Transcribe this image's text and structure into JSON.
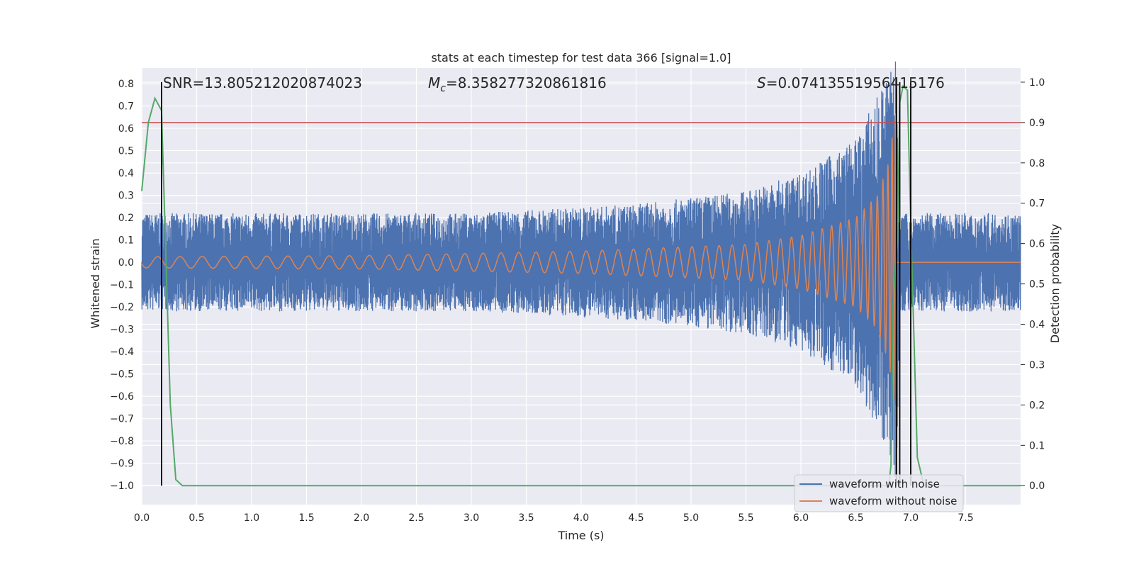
{
  "chart_data": {
    "type": "line",
    "title": "stats at each timestep for test data 366 [signal=1.0]",
    "xlabel": "Time (s)",
    "ylabel": "Whitened strain",
    "y2label": "Detection probability",
    "xlim": [
      0.0,
      8.0
    ],
    "ylim": [
      -1.085,
      0.87
    ],
    "y2lim": [
      -0.047,
      1.035
    ],
    "x_ticks": [
      "0.0",
      "0.5",
      "1.0",
      "1.5",
      "2.0",
      "2.5",
      "3.0",
      "3.5",
      "4.0",
      "4.5",
      "5.0",
      "5.5",
      "6.0",
      "6.5",
      "7.0",
      "7.5"
    ],
    "y_ticks": [
      "0.8",
      "0.7",
      "0.6",
      "0.5",
      "0.4",
      "0.3",
      "0.2",
      "0.1",
      "0.0",
      "−0.1",
      "−0.2",
      "−0.3",
      "−0.4",
      "−0.5",
      "−0.6",
      "−0.7",
      "−0.8",
      "−0.9",
      "−1.0"
    ],
    "y2_ticks": [
      "0.0",
      "0.1",
      "0.2",
      "0.3",
      "0.4",
      "0.5",
      "0.6",
      "0.7",
      "0.8",
      "0.9",
      "1.0"
    ],
    "annotations": {
      "snr": "SNR=13.805212020874023",
      "mc_symbol": "M",
      "mc_sub": "c",
      "mc_value": "=8.358277320861816",
      "s_symbol": "S",
      "s_value": "=0.07413551956415176"
    },
    "legend": {
      "placement": "lower-right",
      "entries": [
        "waveform with noise",
        "waveform without noise"
      ]
    },
    "grid": true,
    "colors": {
      "background": "#eaeaf2",
      "grid": "#ffffff",
      "noisy": "#4c72b0",
      "clean": "#dd8452",
      "probability": "#55a868",
      "threshold": "#c44e52",
      "markers": "#000000"
    },
    "threshold_probability": 0.9,
    "merger_time": 6.87,
    "vertical_markers": [
      0.18,
      6.87,
      6.9,
      7.0
    ],
    "series": [
      {
        "name": "waveform with noise",
        "envelope_points": [
          [
            0.0,
            0.22
          ],
          [
            3.0,
            0.22
          ],
          [
            4.5,
            0.26
          ],
          [
            5.5,
            0.32
          ],
          [
            6.0,
            0.4
          ],
          [
            6.5,
            0.55
          ],
          [
            6.8,
            0.85
          ],
          [
            6.87,
            1.0
          ],
          [
            6.9,
            0.22
          ],
          [
            8.0,
            0.22
          ]
        ]
      },
      {
        "name": "waveform without noise",
        "envelope_points": [
          [
            0.0,
            0.025
          ],
          [
            2.0,
            0.03
          ],
          [
            4.0,
            0.05
          ],
          [
            5.5,
            0.08
          ],
          [
            6.0,
            0.12
          ],
          [
            6.5,
            0.2
          ],
          [
            6.7,
            0.3
          ],
          [
            6.8,
            0.45
          ],
          [
            6.87,
            0.7
          ],
          [
            6.88,
            0.0
          ],
          [
            8.0,
            0.0
          ]
        ]
      },
      {
        "name": "",
        "axis": "secondary",
        "x": [
          0.0,
          0.06,
          0.12,
          0.18,
          0.26,
          0.31,
          0.37,
          0.5,
          1.0,
          2.0,
          3.0,
          4.0,
          5.0,
          6.0,
          6.5,
          6.8,
          6.82,
          6.84,
          6.86,
          6.88,
          6.9,
          6.93,
          6.97,
          7.0,
          7.06,
          7.12,
          7.5,
          8.0
        ],
        "values": [
          0.73,
          0.9,
          0.96,
          0.93,
          0.2,
          0.015,
          0.0,
          0.0,
          0.0,
          0.0,
          0.0,
          0.0,
          0.0,
          0.0,
          0.0,
          0.0,
          0.05,
          0.45,
          0.55,
          0.6,
          0.95,
          0.99,
          0.98,
          0.65,
          0.07,
          0.0,
          0.0,
          0.0
        ]
      }
    ]
  }
}
